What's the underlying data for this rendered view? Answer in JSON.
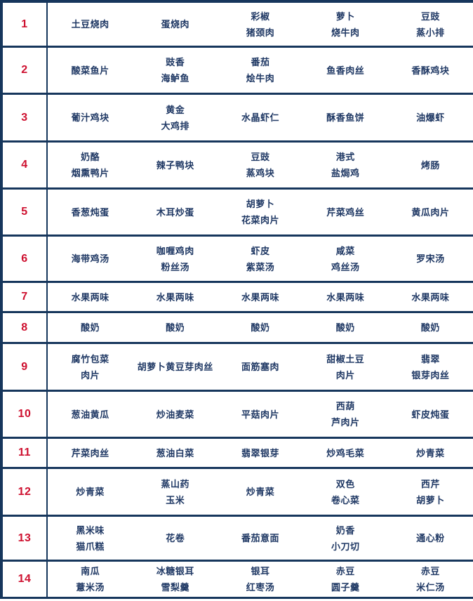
{
  "colors": {
    "accent_red": "#CE102F",
    "text_navy": "#1F3864",
    "border_navy": "#16365C",
    "background": "#FFFFFF"
  },
  "table": {
    "name": "weekly-menu-table",
    "columns": 5,
    "rows": [
      {
        "num": "1",
        "dishes": [
          "土豆烧肉",
          "蛋烧肉",
          "彩椒\n猪颈肉",
          "萝卜\n烧牛肉",
          "豆豉\n蒸小排"
        ]
      },
      {
        "num": "2",
        "dishes": [
          "酸菜鱼片",
          "豉香\n海鲈鱼",
          "番茄\n烩牛肉",
          "鱼香肉丝",
          "香酥鸡块"
        ]
      },
      {
        "num": "3",
        "dishes": [
          "葡汁鸡块",
          "黄金\n大鸡排",
          "水晶虾仁",
          "酥香鱼饼",
          "油爆虾"
        ]
      },
      {
        "num": "4",
        "dishes": [
          "奶酪\n烟熏鸭片",
          "辣子鸭块",
          "豆豉\n蒸鸡块",
          "港式\n盐焗鸡",
          "烤肠"
        ]
      },
      {
        "num": "5",
        "dishes": [
          "香葱炖蛋",
          "木耳炒蛋",
          "胡萝卜\n花菜肉片",
          "芹菜鸡丝",
          "黄瓜肉片"
        ]
      },
      {
        "num": "6",
        "dishes": [
          "海带鸡汤",
          "咖喱鸡肉\n粉丝汤",
          "虾皮\n紫菜汤",
          "咸菜\n鸡丝汤",
          "罗宋汤"
        ]
      },
      {
        "num": "7",
        "dishes": [
          "水果两味",
          "水果两味",
          "水果两味",
          "水果两味",
          "水果两味"
        ]
      },
      {
        "num": "8",
        "dishes": [
          "酸奶",
          "酸奶",
          "酸奶",
          "酸奶",
          "酸奶"
        ]
      },
      {
        "num": "9",
        "dishes": [
          "腐竹包菜\n肉片",
          "胡萝卜黄豆芽肉丝",
          "面筋塞肉",
          "甜椒土豆\n肉片",
          "翡翠\n银芽肉丝"
        ]
      },
      {
        "num": "10",
        "dishes": [
          "葱油黄瓜",
          "炒油麦菜",
          "平菇肉片",
          "西葫\n芦肉片",
          "虾皮炖蛋"
        ]
      },
      {
        "num": "11",
        "dishes": [
          "芹菜肉丝",
          "葱油白菜",
          "翡翠银芽",
          "炒鸡毛菜",
          "炒青菜"
        ]
      },
      {
        "num": "12",
        "dishes": [
          "炒青菜",
          "蒸山药\n玉米",
          "炒青菜",
          "双色\n卷心菜",
          "西芹\n胡萝卜"
        ]
      },
      {
        "num": "13",
        "dishes": [
          "黑米味\n猫爪糕",
          "花卷",
          "番茄意面",
          "奶香\n小刀切",
          "通心粉"
        ]
      },
      {
        "num": "14",
        "dishes": [
          "南瓜\n薏米汤",
          "冰糖银耳\n雪梨羹",
          "银耳\n红枣汤",
          "赤豆\n圆子羹",
          "赤豆\n米仁汤"
        ]
      }
    ]
  }
}
